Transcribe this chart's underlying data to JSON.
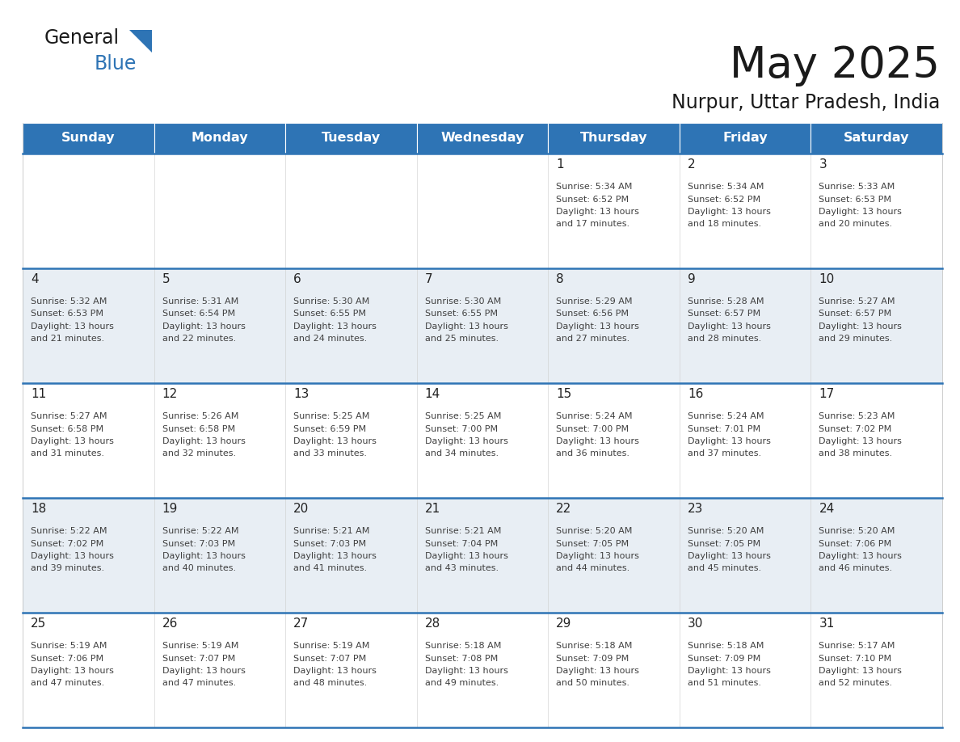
{
  "title": "May 2025",
  "subtitle": "Nurpur, Uttar Pradesh, India",
  "header_bg": "#2E74B5",
  "header_text_color": "#FFFFFF",
  "day_names": [
    "Sunday",
    "Monday",
    "Tuesday",
    "Wednesday",
    "Thursday",
    "Friday",
    "Saturday"
  ],
  "cell_bg_even": "#FFFFFF",
  "cell_bg_odd": "#E8EEF4",
  "row_line_color": "#2E74B5",
  "text_color": "#404040",
  "num_color": "#222222",
  "calendar": [
    [
      null,
      null,
      null,
      null,
      {
        "day": 1,
        "sunrise": "5:34 AM",
        "sunset": "6:52 PM",
        "daylight": "13 hours and 17 minutes"
      },
      {
        "day": 2,
        "sunrise": "5:34 AM",
        "sunset": "6:52 PM",
        "daylight": "13 hours and 18 minutes"
      },
      {
        "day": 3,
        "sunrise": "5:33 AM",
        "sunset": "6:53 PM",
        "daylight": "13 hours and 20 minutes"
      }
    ],
    [
      {
        "day": 4,
        "sunrise": "5:32 AM",
        "sunset": "6:53 PM",
        "daylight": "13 hours and 21 minutes"
      },
      {
        "day": 5,
        "sunrise": "5:31 AM",
        "sunset": "6:54 PM",
        "daylight": "13 hours and 22 minutes"
      },
      {
        "day": 6,
        "sunrise": "5:30 AM",
        "sunset": "6:55 PM",
        "daylight": "13 hours and 24 minutes"
      },
      {
        "day": 7,
        "sunrise": "5:30 AM",
        "sunset": "6:55 PM",
        "daylight": "13 hours and 25 minutes"
      },
      {
        "day": 8,
        "sunrise": "5:29 AM",
        "sunset": "6:56 PM",
        "daylight": "13 hours and 27 minutes"
      },
      {
        "day": 9,
        "sunrise": "5:28 AM",
        "sunset": "6:57 PM",
        "daylight": "13 hours and 28 minutes"
      },
      {
        "day": 10,
        "sunrise": "5:27 AM",
        "sunset": "6:57 PM",
        "daylight": "13 hours and 29 minutes"
      }
    ],
    [
      {
        "day": 11,
        "sunrise": "5:27 AM",
        "sunset": "6:58 PM",
        "daylight": "13 hours and 31 minutes"
      },
      {
        "day": 12,
        "sunrise": "5:26 AM",
        "sunset": "6:58 PM",
        "daylight": "13 hours and 32 minutes"
      },
      {
        "day": 13,
        "sunrise": "5:25 AM",
        "sunset": "6:59 PM",
        "daylight": "13 hours and 33 minutes"
      },
      {
        "day": 14,
        "sunrise": "5:25 AM",
        "sunset": "7:00 PM",
        "daylight": "13 hours and 34 minutes"
      },
      {
        "day": 15,
        "sunrise": "5:24 AM",
        "sunset": "7:00 PM",
        "daylight": "13 hours and 36 minutes"
      },
      {
        "day": 16,
        "sunrise": "5:24 AM",
        "sunset": "7:01 PM",
        "daylight": "13 hours and 37 minutes"
      },
      {
        "day": 17,
        "sunrise": "5:23 AM",
        "sunset": "7:02 PM",
        "daylight": "13 hours and 38 minutes"
      }
    ],
    [
      {
        "day": 18,
        "sunrise": "5:22 AM",
        "sunset": "7:02 PM",
        "daylight": "13 hours and 39 minutes"
      },
      {
        "day": 19,
        "sunrise": "5:22 AM",
        "sunset": "7:03 PM",
        "daylight": "13 hours and 40 minutes"
      },
      {
        "day": 20,
        "sunrise": "5:21 AM",
        "sunset": "7:03 PM",
        "daylight": "13 hours and 41 minutes"
      },
      {
        "day": 21,
        "sunrise": "5:21 AM",
        "sunset": "7:04 PM",
        "daylight": "13 hours and 43 minutes"
      },
      {
        "day": 22,
        "sunrise": "5:20 AM",
        "sunset": "7:05 PM",
        "daylight": "13 hours and 44 minutes"
      },
      {
        "day": 23,
        "sunrise": "5:20 AM",
        "sunset": "7:05 PM",
        "daylight": "13 hours and 45 minutes"
      },
      {
        "day": 24,
        "sunrise": "5:20 AM",
        "sunset": "7:06 PM",
        "daylight": "13 hours and 46 minutes"
      }
    ],
    [
      {
        "day": 25,
        "sunrise": "5:19 AM",
        "sunset": "7:06 PM",
        "daylight": "13 hours and 47 minutes"
      },
      {
        "day": 26,
        "sunrise": "5:19 AM",
        "sunset": "7:07 PM",
        "daylight": "13 hours and 47 minutes"
      },
      {
        "day": 27,
        "sunrise": "5:19 AM",
        "sunset": "7:07 PM",
        "daylight": "13 hours and 48 minutes"
      },
      {
        "day": 28,
        "sunrise": "5:18 AM",
        "sunset": "7:08 PM",
        "daylight": "13 hours and 49 minutes"
      },
      {
        "day": 29,
        "sunrise": "5:18 AM",
        "sunset": "7:09 PM",
        "daylight": "13 hours and 50 minutes"
      },
      {
        "day": 30,
        "sunrise": "5:18 AM",
        "sunset": "7:09 PM",
        "daylight": "13 hours and 51 minutes"
      },
      {
        "day": 31,
        "sunrise": "5:17 AM",
        "sunset": "7:10 PM",
        "daylight": "13 hours and 52 minutes"
      }
    ]
  ],
  "fig_width": 11.88,
  "fig_height": 9.18,
  "dpi": 100
}
